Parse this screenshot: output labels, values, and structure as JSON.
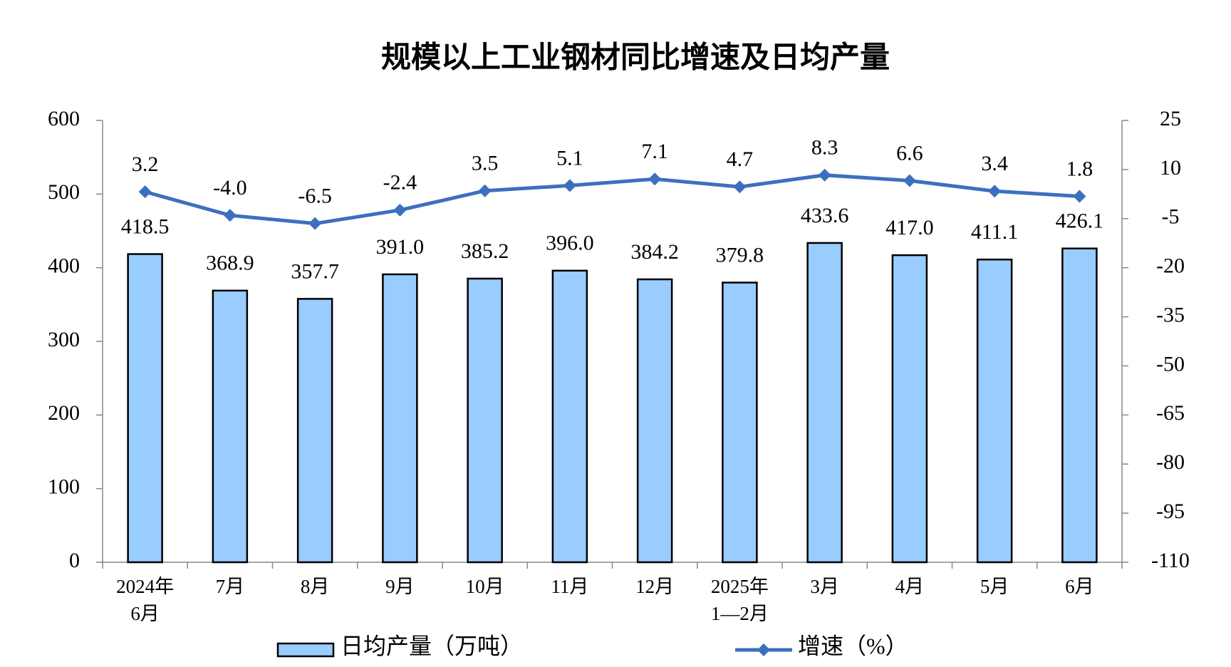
{
  "chart_data": {
    "type": "bar-line",
    "title": "规模以上工业钢材同比增速及日均产量",
    "categories": [
      "2024年\n6月",
      "7月",
      "8月",
      "9月",
      "10月",
      "11月",
      "12月",
      "2025年\n1—2月",
      "3月",
      "4月",
      "5月",
      "6月"
    ],
    "series": [
      {
        "name": "日均产量（万吨）",
        "type": "bar",
        "color": "#99ccff",
        "values": [
          418.5,
          368.9,
          357.7,
          391.0,
          385.2,
          396.0,
          384.2,
          379.8,
          433.6,
          417.0,
          411.1,
          426.1
        ],
        "value_labels": [
          "418.5",
          "368.9",
          "357.7",
          "391.0",
          "385.2",
          "396.0",
          "384.2",
          "379.8",
          "433.6",
          "417.0",
          "411.1",
          "426.1"
        ]
      },
      {
        "name": "增速（%）",
        "type": "line",
        "axis": "y2",
        "color": "#3d6fbf",
        "values": [
          3.2,
          -4.0,
          -6.5,
          -2.4,
          3.5,
          5.1,
          7.1,
          4.7,
          8.3,
          6.6,
          3.4,
          1.8
        ],
        "value_labels": [
          "3.2",
          "-4.0",
          "-6.5",
          "-2.4",
          "3.5",
          "5.1",
          "7.1",
          "4.7",
          "8.3",
          "6.6",
          "3.4",
          "1.8"
        ]
      }
    ],
    "ylim": [
      0,
      600
    ],
    "yticks": [
      0,
      100,
      200,
      300,
      400,
      500,
      600
    ],
    "y2lim": [
      -110,
      25
    ],
    "y2ticks": [
      -110,
      -95,
      -80,
      -65,
      -50,
      -35,
      -20,
      -5,
      10,
      25
    ],
    "legend": "bottom"
  }
}
